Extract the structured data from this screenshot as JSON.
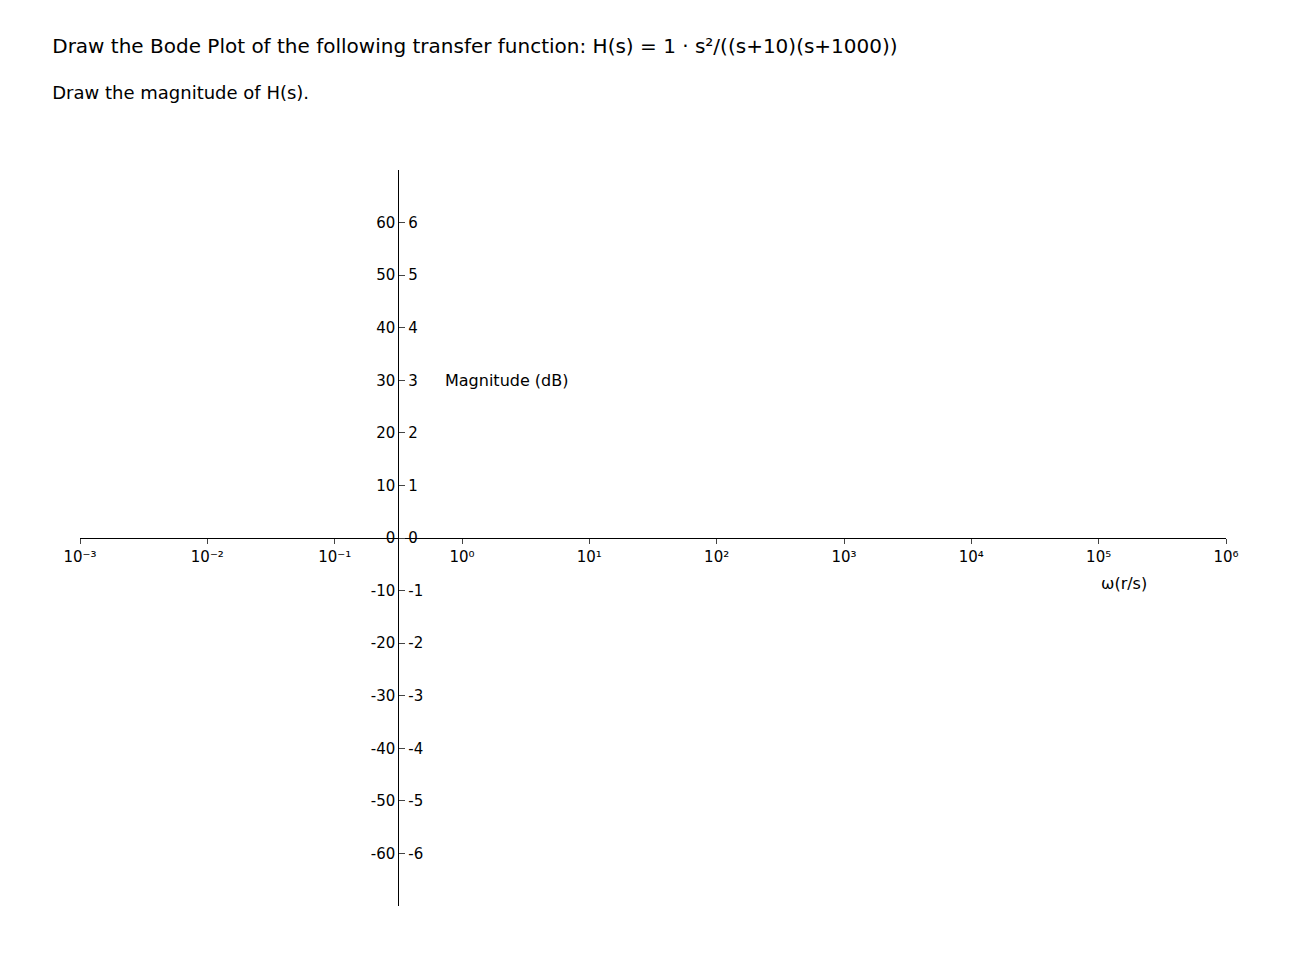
{
  "chart_data": {
    "type": "line",
    "title": "Draw the Bode Plot of the following transfer function: H(s) = 1 · s²/((s+10)(s+1000))",
    "subtitle": "Draw the magnitude of H(s).",
    "x_label": "ω(r/s)",
    "y_label": "Magnitude (dB)",
    "log": "x",
    "grid": false,
    "xlim": [
      0.001,
      1000000
    ],
    "xticks": [
      {
        "value": 0.001,
        "label": "10⁻³"
      },
      {
        "value": 0.01,
        "label": "10⁻²"
      },
      {
        "value": 0.1,
        "label": "10⁻¹"
      },
      {
        "value": 1,
        "label": "10⁰"
      },
      {
        "value": 10,
        "label": "10¹"
      },
      {
        "value": 100,
        "label": "10²"
      },
      {
        "value": 1000,
        "label": "10³"
      },
      {
        "value": 10000,
        "label": "10⁴"
      },
      {
        "value": 100000,
        "label": "10⁵"
      },
      {
        "value": 1000000,
        "label": "10⁶"
      }
    ],
    "ylim": [
      -70,
      70
    ],
    "yticks": [
      -60,
      -50,
      -40,
      -30,
      -20,
      -10,
      0,
      10,
      20,
      30,
      40,
      50,
      60
    ],
    "y2lim": [
      -7,
      7
    ],
    "y2ticks": [
      -6,
      -5,
      -4,
      -3,
      -2,
      -1,
      0,
      1,
      2,
      3,
      4,
      5,
      6
    ]
  }
}
